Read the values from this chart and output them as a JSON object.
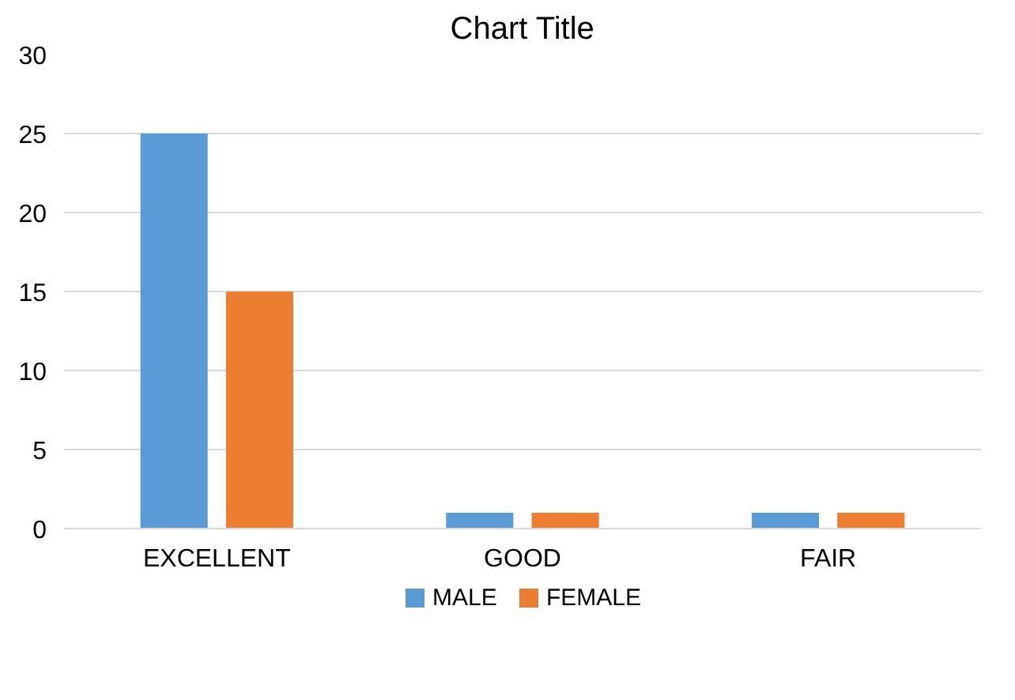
{
  "chart_data": {
    "type": "bar",
    "title": "Chart Title",
    "categories": [
      "EXCELLENT",
      "GOOD",
      "FAIR"
    ],
    "series": [
      {
        "name": "MALE",
        "color": "#5b9bd5",
        "values": [
          25,
          1,
          1
        ]
      },
      {
        "name": "FEMALE",
        "color": "#ed7d31",
        "values": [
          15,
          1,
          1
        ]
      }
    ],
    "ylim": [
      0,
      30
    ],
    "yticks": [
      0,
      5,
      10,
      15,
      20,
      25,
      30
    ],
    "grid": "y",
    "legend": "bottom"
  }
}
